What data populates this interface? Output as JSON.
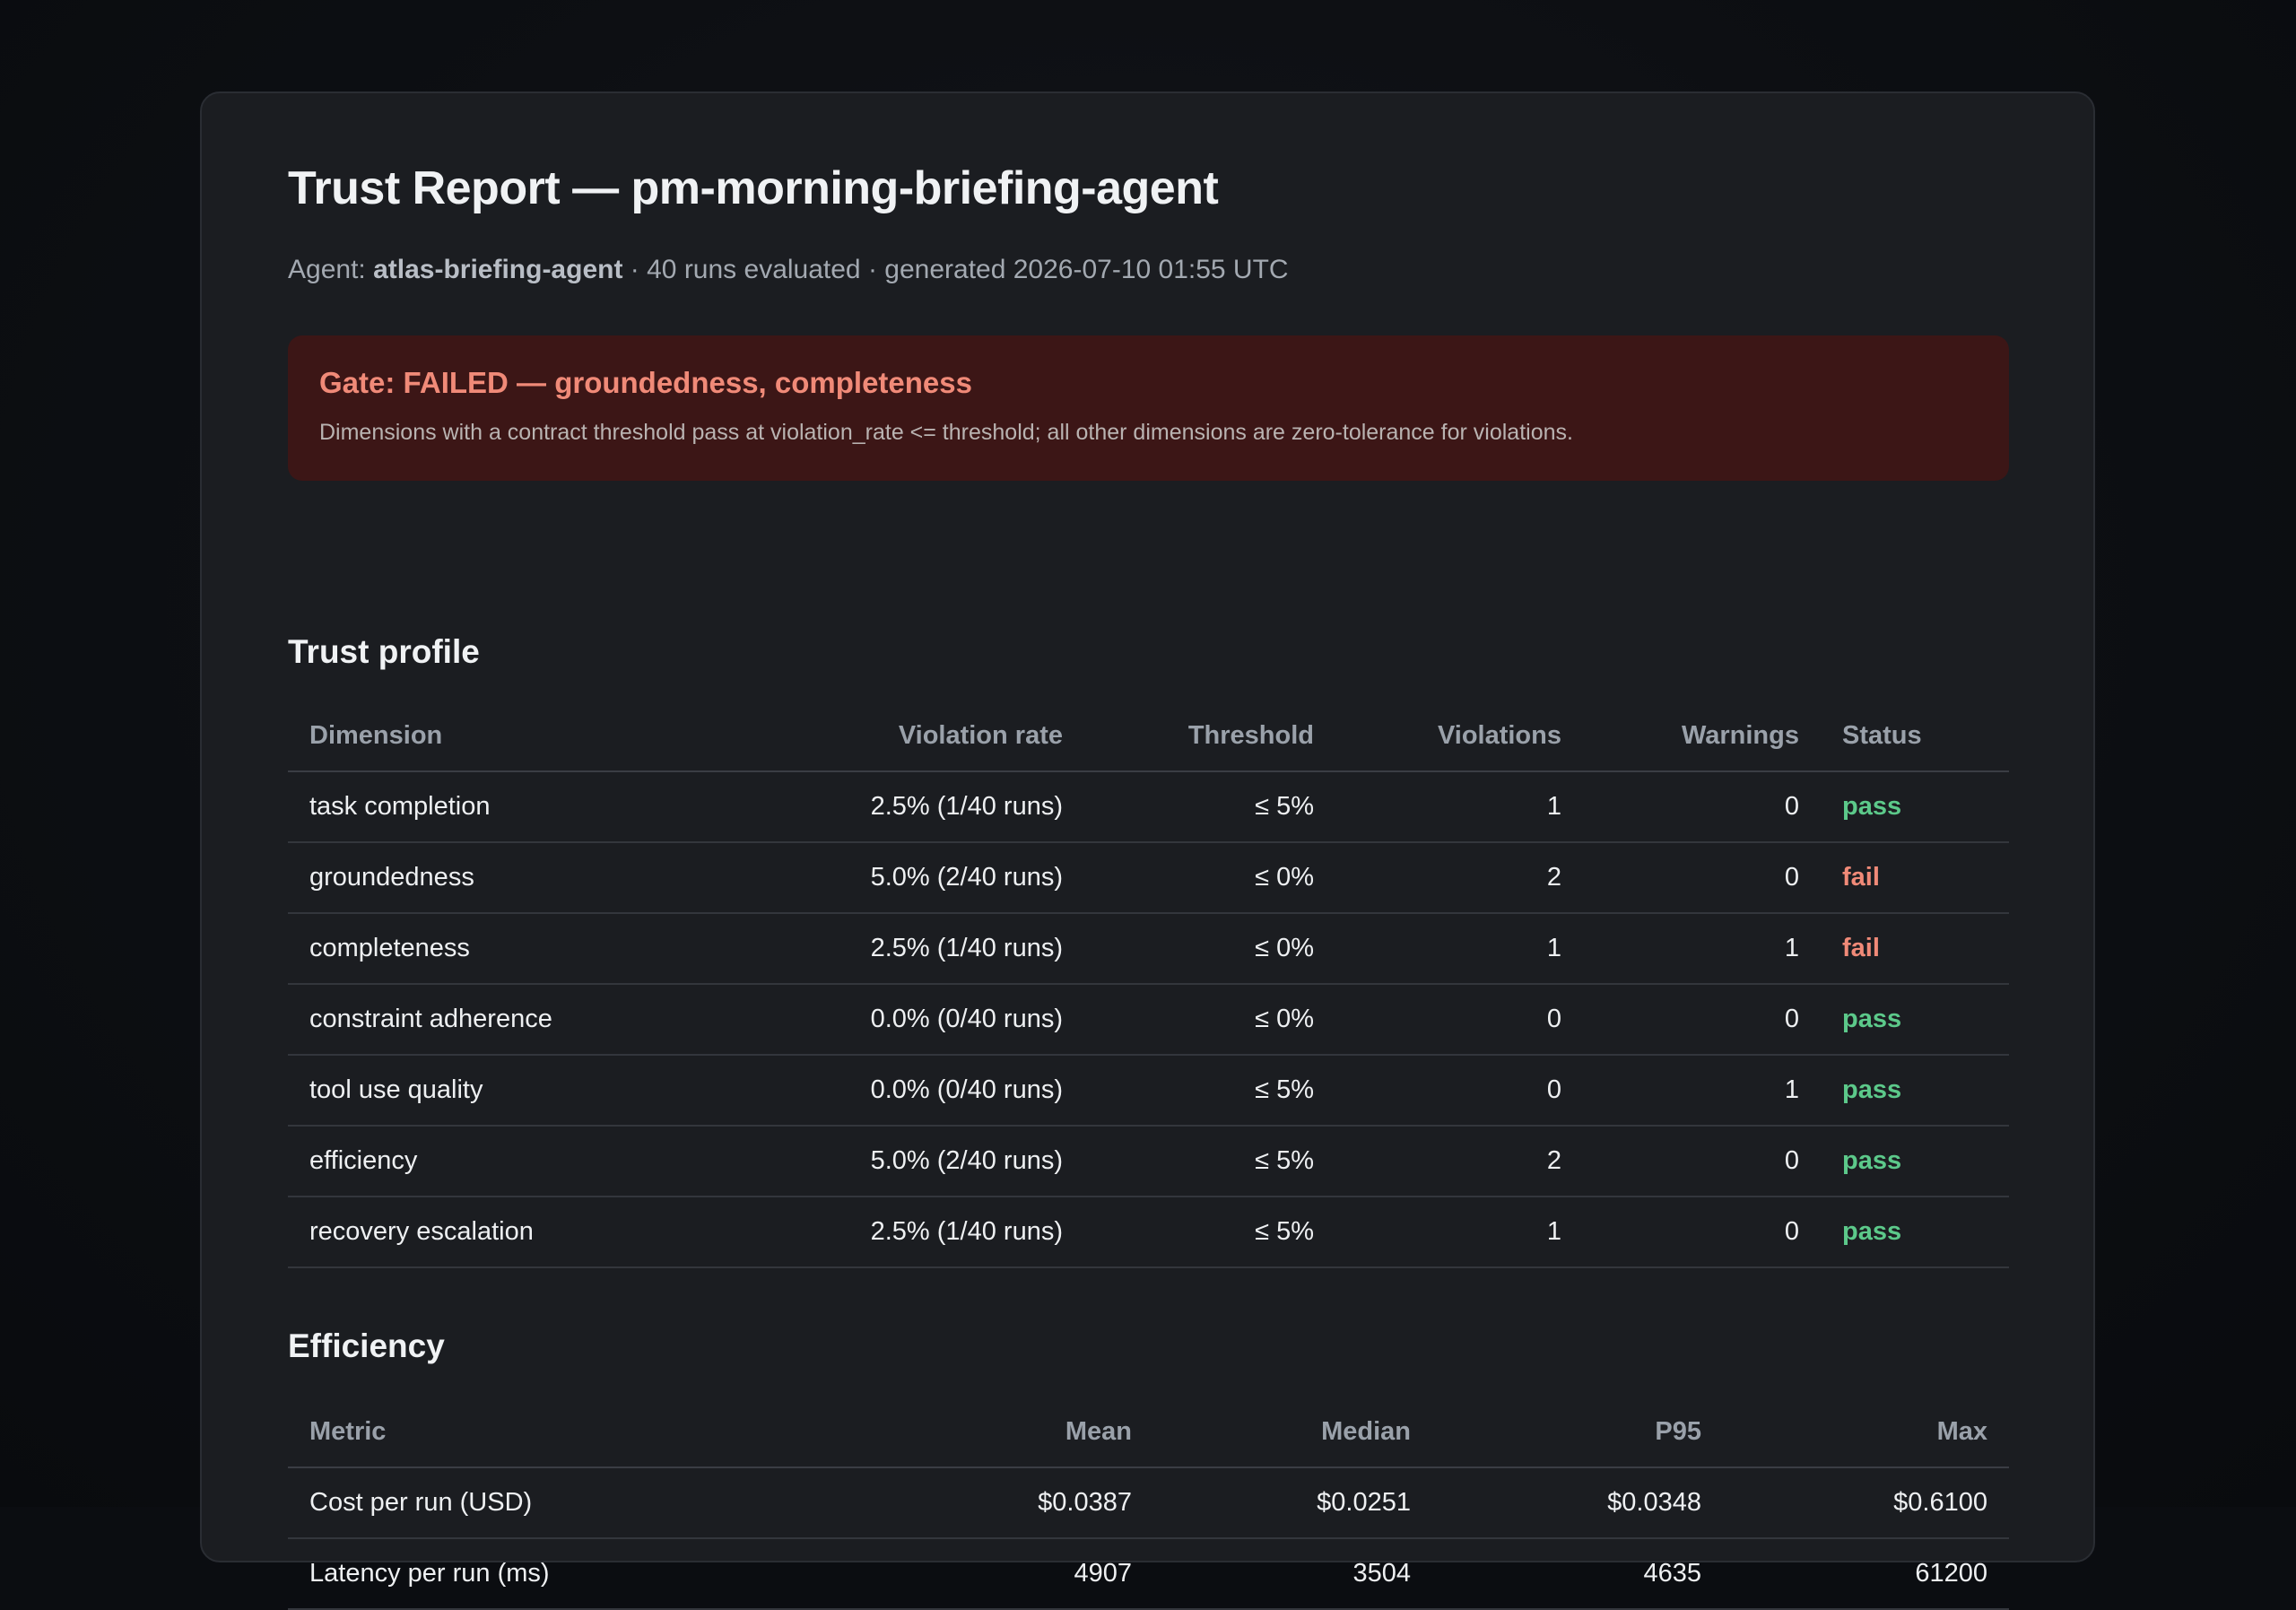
{
  "report": {
    "title": "Trust Report — pm-morning-briefing-agent",
    "subtitle_prefix": "Agent: ",
    "agent_name": "atlas-briefing-agent",
    "subtitle_suffix": " · 40 runs evaluated · generated 2026-07-10 01:55 UTC"
  },
  "gate": {
    "title": "Gate: FAILED — groundedness, completeness",
    "description": "Dimensions with a contract threshold pass at violation_rate <= threshold; all other dimensions are zero-tolerance for violations.",
    "status_color": "#f08a78",
    "background_color": "#3c1616"
  },
  "trust_profile": {
    "heading": "Trust profile",
    "columns": [
      "Dimension",
      "Violation rate",
      "Threshold",
      "Violations",
      "Warnings",
      "Status"
    ],
    "rows": [
      {
        "dimension": "task completion",
        "violation_rate": "2.5% (1/40 runs)",
        "threshold": "≤ 5%",
        "violations": "1",
        "warnings": "0",
        "status": "pass"
      },
      {
        "dimension": "groundedness",
        "violation_rate": "5.0% (2/40 runs)",
        "threshold": "≤ 0%",
        "violations": "2",
        "warnings": "0",
        "status": "fail"
      },
      {
        "dimension": "completeness",
        "violation_rate": "2.5% (1/40 runs)",
        "threshold": "≤ 0%",
        "violations": "1",
        "warnings": "1",
        "status": "fail"
      },
      {
        "dimension": "constraint adherence",
        "violation_rate": "0.0% (0/40 runs)",
        "threshold": "≤ 0%",
        "violations": "0",
        "warnings": "0",
        "status": "pass"
      },
      {
        "dimension": "tool use quality",
        "violation_rate": "0.0% (0/40 runs)",
        "threshold": "≤ 5%",
        "violations": "0",
        "warnings": "1",
        "status": "pass"
      },
      {
        "dimension": "efficiency",
        "violation_rate": "5.0% (2/40 runs)",
        "threshold": "≤ 5%",
        "violations": "2",
        "warnings": "0",
        "status": "pass"
      },
      {
        "dimension": "recovery escalation",
        "violation_rate": "2.5% (1/40 runs)",
        "threshold": "≤ 5%",
        "violations": "1",
        "warnings": "0",
        "status": "pass"
      }
    ]
  },
  "efficiency": {
    "heading": "Efficiency",
    "columns": [
      "Metric",
      "Mean",
      "Median",
      "P95",
      "Max"
    ],
    "rows": [
      {
        "metric": "Cost per run (USD)",
        "mean": "$0.0387",
        "median": "$0.0251",
        "p95": "$0.0348",
        "max": "$0.6100"
      },
      {
        "metric": "Latency per run (ms)",
        "mean": "4907",
        "median": "3504",
        "p95": "4635",
        "max": "61200"
      }
    ]
  },
  "colors": {
    "pass": "#5cc98a",
    "fail": "#f08a78"
  }
}
